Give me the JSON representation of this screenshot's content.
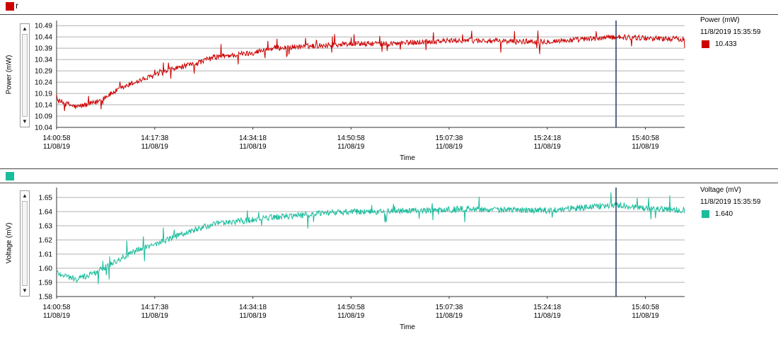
{
  "charts": [
    {
      "header_label": "r",
      "color": "#cc0000",
      "ylabel": "Power (mW)",
      "xlabel": "Time",
      "legend": {
        "title": "Power (mW)",
        "timestamp": "11/8/2019 15:35:59",
        "value": "10.433"
      }
    },
    {
      "header_label": "",
      "color": "#1abc9c",
      "ylabel": "Voltage (mV)",
      "xlabel": "Time",
      "legend": {
        "title": "Voltage (mV)",
        "timestamp": "11/8/2019 15:35:59",
        "value": "1.640"
      }
    }
  ],
  "chart_data": [
    {
      "type": "line",
      "series": [
        {
          "name": "Power (mW)",
          "color": "#cc0000"
        }
      ],
      "ylabel": "Power (mW)",
      "xlabel": "Time",
      "ylim": [
        10.04,
        10.5
      ],
      "y_ticks": [
        "10.04",
        "10.09",
        "10.14",
        "10.19",
        "10.24",
        "10.29",
        "10.34",
        "10.39",
        "10.44",
        "10.49"
      ],
      "x_ticks": [
        {
          "time": "14:00:58",
          "date": "11/08/19"
        },
        {
          "time": "14:17:38",
          "date": "11/08/19"
        },
        {
          "time": "14:34:18",
          "date": "11/08/19"
        },
        {
          "time": "14:50:58",
          "date": "11/08/19"
        },
        {
          "time": "15:07:38",
          "date": "11/08/19"
        },
        {
          "time": "15:24:18",
          "date": "11/08/19"
        },
        {
          "time": "15:40:58",
          "date": "11/08/19"
        }
      ],
      "x_range": [
        "14:00:58",
        "15:47:38"
      ],
      "cursor_time": "15:35:59",
      "trend": [
        [
          "14:00:58",
          10.16
        ],
        [
          "14:04:18",
          10.13
        ],
        [
          "14:07:38",
          10.15
        ],
        [
          "14:10:58",
          10.2
        ],
        [
          "14:14:18",
          10.24
        ],
        [
          "14:17:38",
          10.27
        ],
        [
          "14:20:58",
          10.3
        ],
        [
          "14:24:18",
          10.32
        ],
        [
          "14:27:38",
          10.35
        ],
        [
          "14:30:58",
          10.36
        ],
        [
          "14:34:18",
          10.37
        ],
        [
          "14:37:38",
          10.39
        ],
        [
          "14:40:58",
          10.395
        ],
        [
          "14:44:18",
          10.4
        ],
        [
          "14:47:38",
          10.405
        ],
        [
          "14:50:58",
          10.41
        ],
        [
          "14:57:38",
          10.41
        ],
        [
          "15:04:18",
          10.42
        ],
        [
          "15:10:58",
          10.425
        ],
        [
          "15:17:38",
          10.42
        ],
        [
          "15:24:18",
          10.42
        ],
        [
          "15:30:58",
          10.43
        ],
        [
          "15:35:59",
          10.44
        ],
        [
          "15:40:58",
          10.435
        ],
        [
          "15:47:38",
          10.43
        ]
      ],
      "noise": 0.012,
      "grid": true
    },
    {
      "type": "line",
      "series": [
        {
          "name": "Voltage (mV)",
          "color": "#1abc9c"
        }
      ],
      "ylabel": "Voltage (mV)",
      "xlabel": "Time",
      "ylim": [
        1.58,
        1.655
      ],
      "y_ticks": [
        "1.58",
        "1.59",
        "1.60",
        "1.61",
        "1.62",
        "1.63",
        "1.64",
        "1.65"
      ],
      "x_ticks": [
        {
          "time": "14:00:58",
          "date": "11/08/19"
        },
        {
          "time": "14:17:38",
          "date": "11/08/19"
        },
        {
          "time": "14:34:18",
          "date": "11/08/19"
        },
        {
          "time": "14:50:58",
          "date": "11/08/19"
        },
        {
          "time": "15:07:38",
          "date": "11/08/19"
        },
        {
          "time": "15:24:18",
          "date": "11/08/19"
        },
        {
          "time": "15:40:58",
          "date": "11/08/19"
        }
      ],
      "x_range": [
        "14:00:58",
        "15:47:38"
      ],
      "cursor_time": "15:35:59",
      "trend": [
        [
          "14:00:58",
          1.597
        ],
        [
          "14:04:18",
          1.592
        ],
        [
          "14:07:38",
          1.597
        ],
        [
          "14:10:58",
          1.605
        ],
        [
          "14:14:18",
          1.612
        ],
        [
          "14:17:38",
          1.617
        ],
        [
          "14:20:58",
          1.622
        ],
        [
          "14:24:18",
          1.627
        ],
        [
          "14:27:38",
          1.631
        ],
        [
          "14:30:58",
          1.633
        ],
        [
          "14:34:18",
          1.634
        ],
        [
          "14:37:38",
          1.636
        ],
        [
          "14:40:58",
          1.637
        ],
        [
          "14:44:18",
          1.638
        ],
        [
          "14:47:38",
          1.639
        ],
        [
          "14:50:58",
          1.64
        ],
        [
          "14:57:38",
          1.64
        ],
        [
          "15:04:18",
          1.641
        ],
        [
          "15:10:58",
          1.642
        ],
        [
          "15:17:38",
          1.641
        ],
        [
          "15:24:18",
          1.641
        ],
        [
          "15:30:58",
          1.643
        ],
        [
          "15:35:59",
          1.645
        ],
        [
          "15:40:58",
          1.642
        ],
        [
          "15:47:38",
          1.641
        ]
      ],
      "noise": 0.0022,
      "grid": true
    }
  ]
}
